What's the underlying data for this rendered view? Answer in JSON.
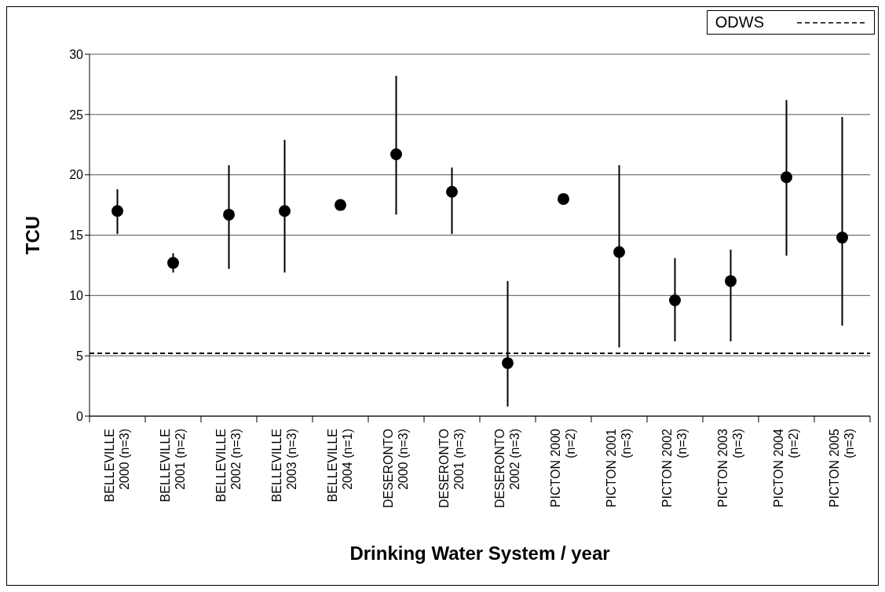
{
  "chart_data": {
    "type": "scatter",
    "xlabel": "Drinking Water System / year",
    "ylabel": "TCU",
    "categories": [
      "BELLEVILLE 2000 (n=3)",
      "BELLEVILLE 2001 (n=2)",
      "BELLEVILLE 2002 (n=3)",
      "BELLEVILLE 2003 (n=3)",
      "BELLEVILLE 2004 (n=1)",
      "DESERONTO 2000 (n=3)",
      "DESERONTO 2001 (n=3)",
      "DESERONTO 2002 (n=3)",
      "PICTON 2000 (n=2)",
      "PICTON 2001 (n=3)",
      "PICTON 2002 (n=3)",
      "PICTON 2003 (n=3)",
      "PICTON 2004 (n=2)",
      "PICTON 2005 (n=3)"
    ],
    "values": [
      17.0,
      12.7,
      16.7,
      17.0,
      17.5,
      21.7,
      18.6,
      4.4,
      18.0,
      13.6,
      9.6,
      11.2,
      19.8,
      14.8
    ],
    "errors": [
      [
        15.1,
        18.8
      ],
      [
        11.9,
        13.5
      ],
      [
        12.2,
        20.8
      ],
      [
        11.9,
        22.9
      ],
      null,
      [
        16.7,
        28.2
      ],
      [
        15.1,
        20.6
      ],
      [
        0.8,
        11.2
      ],
      null,
      [
        5.7,
        20.8
      ],
      [
        6.2,
        13.1
      ],
      [
        6.2,
        13.8
      ],
      [
        13.3,
        26.2
      ],
      [
        7.5,
        24.8
      ]
    ],
    "color": "#000000",
    "marker": "circle",
    "ylim": [
      0,
      30
    ],
    "yticks": [
      0,
      5,
      10,
      15,
      20,
      25,
      30
    ],
    "grid": "y",
    "ref_lines": [
      {
        "axis": "y",
        "value": 5.2,
        "label": "ODWS",
        "color": "#000000",
        "line_style": "dashed"
      }
    ],
    "legend": "top right"
  }
}
